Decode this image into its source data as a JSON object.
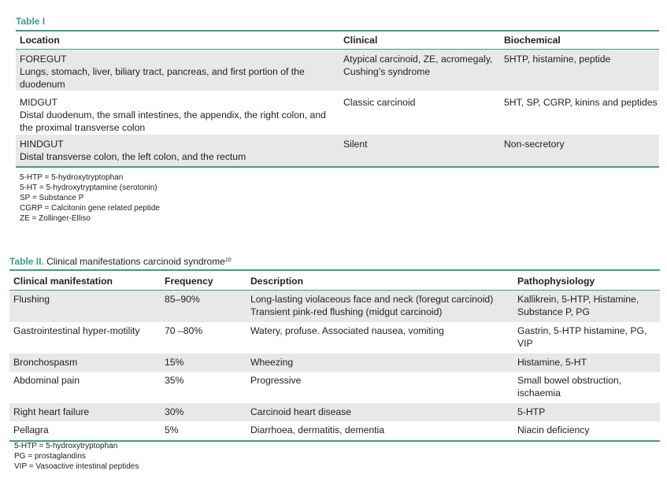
{
  "table1": {
    "title": "Table I",
    "headers": {
      "location": "Location",
      "clinical": "Clinical",
      "biochemical": "Biochemical"
    },
    "rows": [
      {
        "location_name": "FOREGUT",
        "location_line1": "Lungs, stomach, liver, biliary tract, pancreas, and first portion of the",
        "location_line2": "duodenum",
        "clinical_line1": "Atypical carcinoid, ZE, acromegaly,",
        "clinical_line2": "Cushing’s syndrome",
        "biochemical": "5HTP, histamine, peptide"
      },
      {
        "location_name": "MIDGUT",
        "location_line1": "Distal duodenum, the small intestines, the appendix, the right colon, and",
        "location_line2": "the proximal transverse colon",
        "clinical_line1": "Classic carcinoid",
        "biochemical": "5HT, SP, CGRP, kinins and peptides"
      },
      {
        "location_name": "HINDGUT",
        "location_line1": "Distal transverse colon, the left colon, and the rectum",
        "clinical_line1": "Silent",
        "biochemical": "Non-secretory"
      }
    ],
    "footnotes": [
      "5-HTP = 5-hydroxytryptophan",
      "5-HT = 5-hydroxytryptamine (serotonin)",
      "SP = Substance P",
      "CGRP = Calcitonin gene related peptide",
      "ZE = Zollinger-Elliso"
    ]
  },
  "table2": {
    "title_bold": "Table II.",
    "title_rest": " Clinical manifestations carcinoid syndrome",
    "title_ref": "10",
    "headers": {
      "manifestation": "Clinical manifestation",
      "frequency": "Frequency",
      "description": "Description",
      "pathophysiology": "Pathophysiology"
    },
    "rows": [
      {
        "manifestation": "Flushing",
        "frequency": "85–90%",
        "description_line1": "Long-lasting violaceous face and neck (foregut carcinoid)",
        "description_line2": "Transient pink-red flushing (midgut carcinoid)",
        "patho_line1": "Kallikrein, 5-HTP, Histamine,",
        "patho_line2": "Substance P, PG"
      },
      {
        "manifestation": "Gastrointestinal hyper-motility",
        "frequency": "70 –80%",
        "description_line1": "Watery, profuse. Associated nausea, vomiting",
        "patho_line1": "Gastrin, 5-HTP histamine, PG,",
        "patho_line2": "VIP"
      },
      {
        "manifestation": "Bronchospasm",
        "frequency": "15%",
        "description_line1": "Wheezing",
        "patho_line1": "Histamine, 5-HT"
      },
      {
        "manifestation": "Abdominal pain",
        "frequency": "35%",
        "description_line1": "Progressive",
        "patho_line1": "Small bowel obstruction,",
        "patho_line2": "ischaemia"
      },
      {
        "manifestation": "Right heart failure",
        "frequency": "30%",
        "description_line1": "Carcinoid heart disease",
        "patho_line1": "5-HTP"
      },
      {
        "manifestation": "Pellagra",
        "frequency": "5%",
        "description_line1": "Diarrhoea, dermatitis, dementia",
        "patho_line1": "Niacin deficiency"
      }
    ],
    "footnotes": [
      "5-HTP = 5-hydroxytryptophan",
      "PG = prostaglandins",
      "VIP = Vasoactive intestinal peptides"
    ]
  }
}
